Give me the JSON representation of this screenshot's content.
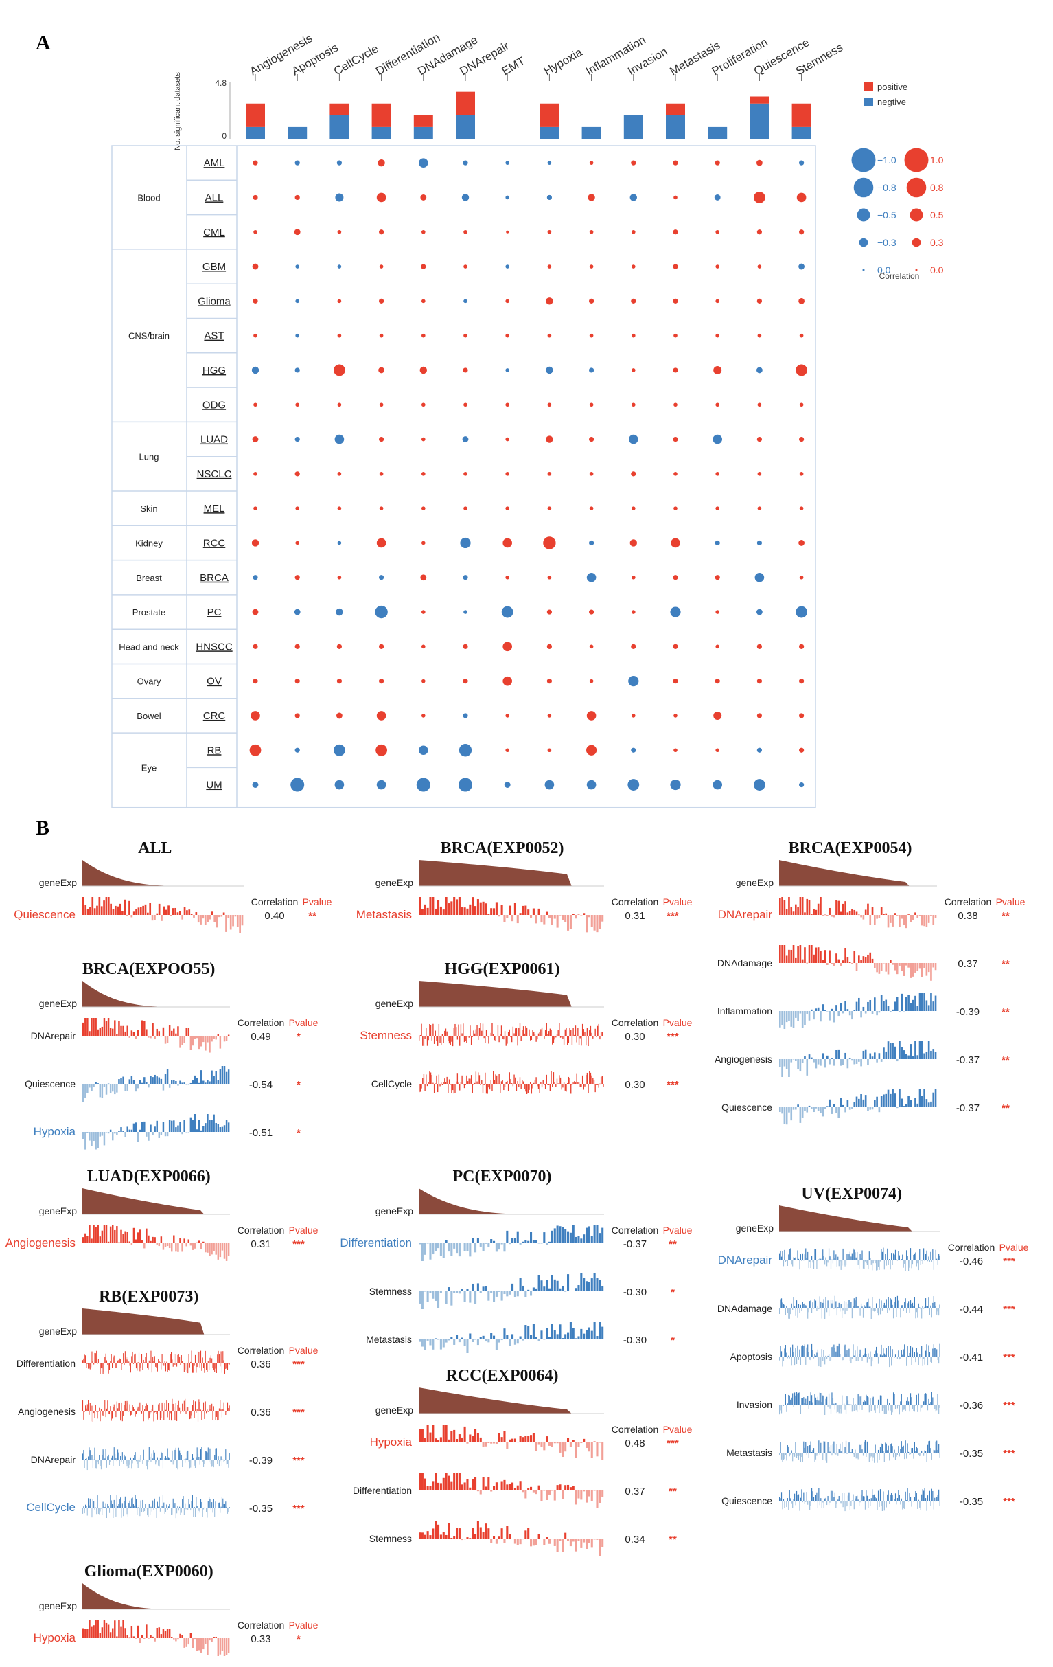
{
  "panel_a_label": "A",
  "panel_b_label": "B",
  "colors": {
    "pos": "#e8402f",
    "neg": "#3f7fbf",
    "pos_light": "#f2a097",
    "neg_light": "#9dbedc",
    "brown": "#8b4a3c"
  },
  "chart_data": [
    {
      "type": "bubble-matrix",
      "title": "A",
      "pathways": [
        "Angiogenesis",
        "Apoptosis",
        "CellCycle",
        "Differentiation",
        "DNAdamage",
        "DNArepair",
        "EMT",
        "Hypoxia",
        "Inflammation",
        "Invasion",
        "Metastasis",
        "Proliferation",
        "Quiescence",
        "Stemness"
      ],
      "bar_axis": {
        "label": "No. significant datasets",
        "max_label": "4.8",
        "min_label": "0",
        "ylim": [
          0,
          4.8
        ]
      },
      "bar_legend": {
        "positive": "positive",
        "negative": "negtive"
      },
      "bar_positive": [
        2,
        0,
        1,
        2,
        1,
        2,
        0,
        2,
        0,
        0,
        1,
        0,
        0.6,
        2
      ],
      "bar_negative": [
        1,
        1,
        2,
        1,
        1,
        2,
        0,
        1,
        1,
        2,
        2,
        1,
        3,
        1
      ],
      "size_legend": {
        "title": "Correlation",
        "neg_labels": [
          "−1.0",
          "−0.8",
          "−0.5",
          "−0.3",
          "0.0"
        ],
        "pos_labels": [
          "1.0",
          "0.8",
          "0.5",
          "0.3",
          "0.0"
        ],
        "values": [
          1.0,
          0.8,
          0.5,
          0.3,
          0.0
        ]
      },
      "groups": [
        {
          "name": "Blood",
          "cancers": [
            "AML",
            "ALL",
            "CML"
          ]
        },
        {
          "name": "CNS/brain",
          "cancers": [
            "GBM",
            "Glioma",
            "AST",
            "HGG",
            "ODG"
          ]
        },
        {
          "name": "Lung",
          "cancers": [
            "LUAD",
            "NSCLC"
          ]
        },
        {
          "name": "Skin",
          "cancers": [
            "MEL"
          ]
        },
        {
          "name": "Kidney",
          "cancers": [
            "RCC"
          ]
        },
        {
          "name": "Breast",
          "cancers": [
            "BRCA"
          ]
        },
        {
          "name": "Prostate",
          "cancers": [
            "PC"
          ]
        },
        {
          "name": "Head and neck",
          "cancers": [
            "HNSCC"
          ]
        },
        {
          "name": "Ovary",
          "cancers": [
            "OV"
          ]
        },
        {
          "name": "Bowel",
          "cancers": [
            "CRC"
          ]
        },
        {
          "name": "Eye",
          "cancers": [
            "RB",
            "UM"
          ]
        }
      ],
      "correlations": [
        [
          0.1,
          -0.1,
          -0.1,
          0.2,
          -0.3,
          -0.1,
          -0.05,
          -0.05,
          0.05,
          0.1,
          0.1,
          0.1,
          0.15,
          -0.1
        ],
        [
          0.1,
          0.1,
          -0.25,
          0.3,
          0.15,
          -0.2,
          -0.05,
          -0.1,
          0.2,
          -0.2,
          0.05,
          -0.15,
          0.4,
          0.3
        ],
        [
          0.05,
          0.15,
          0.05,
          0.1,
          0.05,
          0.05,
          0,
          0.05,
          0.05,
          0.05,
          0.1,
          0.05,
          0.1,
          0.1
        ],
        [
          0.15,
          -0.05,
          -0.05,
          0.05,
          0.1,
          0.05,
          -0.05,
          0.05,
          0.05,
          0.05,
          0.1,
          0.05,
          0.05,
          -0.15
        ],
        [
          0.1,
          -0.05,
          0.05,
          0.1,
          0.05,
          -0.05,
          0.05,
          0.2,
          0.1,
          0.1,
          0.1,
          0.05,
          0.1,
          0.15
        ],
        [
          0.05,
          -0.05,
          0.05,
          0.05,
          0.05,
          0.05,
          0.05,
          0.05,
          0.05,
          0.05,
          0.05,
          0.05,
          0.05,
          0.05
        ],
        [
          -0.2,
          -0.1,
          0.4,
          0.15,
          0.2,
          0.1,
          -0.05,
          -0.2,
          -0.1,
          0.05,
          0.1,
          0.25,
          -0.15,
          0.4
        ],
        [
          0.05,
          0.05,
          0.05,
          0.05,
          0.05,
          0.05,
          0.05,
          0.05,
          0.05,
          0.05,
          0.05,
          0.05,
          0.05,
          0.05
        ],
        [
          0.15,
          -0.1,
          -0.3,
          0.1,
          0.05,
          -0.15,
          0.05,
          0.2,
          0.1,
          -0.3,
          0.1,
          -0.3,
          0.1,
          0.1
        ],
        [
          0.05,
          0.1,
          0.05,
          0.05,
          0.05,
          0.05,
          0.05,
          0.05,
          0.05,
          0.1,
          0.05,
          0.05,
          0.05,
          0.05
        ],
        [
          0.05,
          0.05,
          0.05,
          0.05,
          0.05,
          0.05,
          0.05,
          0.05,
          0.05,
          0.05,
          0.05,
          0.05,
          0.05,
          0.05
        ],
        [
          0.2,
          0.05,
          -0.05,
          0.3,
          0.05,
          -0.35,
          0.3,
          0.45,
          -0.1,
          0.2,
          0.3,
          -0.1,
          -0.1,
          0.15
        ],
        [
          -0.1,
          0.1,
          0.05,
          -0.1,
          0.15,
          -0.1,
          0.05,
          0.05,
          -0.3,
          0.05,
          0.1,
          0.1,
          -0.3,
          0.05
        ],
        [
          0.15,
          -0.15,
          -0.2,
          -0.45,
          0.05,
          -0.05,
          -0.4,
          0.1,
          0.1,
          0.05,
          -0.35,
          0.05,
          -0.15,
          -0.4
        ],
        [
          0.1,
          0.1,
          0.1,
          0.1,
          0.05,
          0.1,
          0.3,
          0.1,
          0.05,
          0.1,
          0.1,
          0.05,
          0.1,
          0.1
        ],
        [
          0.1,
          0.1,
          0.1,
          0.1,
          0.05,
          0.1,
          0.3,
          0.1,
          0.05,
          -0.35,
          0.1,
          0.1,
          0.1,
          0.1
        ],
        [
          0.3,
          0.1,
          0.15,
          0.3,
          0.05,
          -0.1,
          0.05,
          0.05,
          0.3,
          0.05,
          0.05,
          0.25,
          0.1,
          0.1
        ],
        [
          0.4,
          -0.1,
          -0.4,
          0.4,
          -0.3,
          -0.45,
          0.05,
          0.05,
          0.35,
          -0.1,
          0.05,
          0.05,
          -0.1,
          0.1
        ],
        [
          -0.15,
          -0.5,
          -0.3,
          -0.3,
          -0.5,
          -0.5,
          -0.15,
          -0.3,
          -0.3,
          -0.4,
          -0.35,
          -0.3,
          -0.4,
          -0.1
        ]
      ]
    },
    {
      "type": "bar",
      "title": "B",
      "panels": [
        {
          "title": "ALL",
          "seed": 11,
          "exp_shape": "steep",
          "rows": [
            {
              "label": "Quiescence",
              "label_color": "pos",
              "corr": "0.40",
              "p": "**",
              "style": "mixed_pos",
              "header": true
            }
          ]
        },
        {
          "title": "BRCA(EXP0052)",
          "seed": 12,
          "exp_shape": "flat",
          "rows": [
            {
              "label": "Metastasis",
              "label_color": "pos",
              "corr": "0.31",
              "p": "***",
              "style": "mixed_pos",
              "header": true
            }
          ]
        },
        {
          "title": "BRCA(EXP0054)",
          "seed": 13,
          "exp_shape": "mid",
          "rows": [
            {
              "label": "DNArepair",
              "label_color": "pos",
              "corr": "0.38",
              "p": "**",
              "style": "mixed_pos",
              "header": true
            },
            {
              "label": "DNAdamage",
              "label_color": "plain",
              "corr": "0.37",
              "p": "**",
              "style": "mixed_pos"
            },
            {
              "label": "Inflammation",
              "label_color": "plain",
              "corr": "-0.39",
              "p": "**",
              "style": "mixed_neg"
            },
            {
              "label": "Angiogenesis",
              "label_color": "plain",
              "corr": "-0.37",
              "p": "**",
              "style": "mixed_neg"
            },
            {
              "label": "Quiescence",
              "label_color": "plain",
              "corr": "-0.37",
              "p": "**",
              "style": "mixed_neg"
            }
          ]
        },
        {
          "title": "BRCA(EXPOO55)",
          "seed": 14,
          "exp_shape": "steep",
          "rows": [
            {
              "label": "DNArepair",
              "label_color": "plain",
              "corr": "0.49",
              "p": "*",
              "style": "mixed_pos",
              "header": true
            },
            {
              "label": "Quiescence",
              "label_color": "plain",
              "corr": "-0.54",
              "p": "*",
              "style": "mixed_neg"
            },
            {
              "label": "Hypoxia",
              "label_color": "neg",
              "corr": "-0.51",
              "p": "*",
              "style": "mixed_neg"
            }
          ]
        },
        {
          "title": "HGG(EXP0061)",
          "seed": 15,
          "exp_shape": "flat",
          "rows": [
            {
              "label": "Stemness",
              "label_color": "pos",
              "corr": "0.30",
              "p": "***",
              "style": "dense_pos",
              "header": true
            },
            {
              "label": "CellCycle",
              "label_color": "plain",
              "corr": "0.30",
              "p": "***",
              "style": "dense_pos"
            }
          ]
        },
        {
          "title": "LUAD(EXP0066)",
          "seed": 16,
          "exp_shape": "mid",
          "rows": [
            {
              "label": "Angiogenesis",
              "label_color": "pos",
              "corr": "0.31",
              "p": "***",
              "style": "mixed_pos",
              "header": true
            }
          ]
        },
        {
          "title": "PC(EXP0070)",
          "seed": 17,
          "exp_shape": "steep",
          "rows": [
            {
              "label": "Differentiation",
              "label_color": "neg",
              "corr": "-0.37",
              "p": "**",
              "style": "mixed_neg",
              "header": true
            },
            {
              "label": "Stemness",
              "label_color": "plain",
              "corr": "-0.30",
              "p": "*",
              "style": "mixed_neg"
            },
            {
              "label": "Metastasis",
              "label_color": "plain",
              "corr": "-0.30",
              "p": "*",
              "style": "mixed_neg"
            }
          ]
        },
        {
          "title": "UV(EXP0074)",
          "seed": 18,
          "exp_shape": "mid",
          "rows": [
            {
              "label": "DNArepair",
              "label_color": "neg",
              "corr": "-0.46",
              "p": "***",
              "style": "dense_neg",
              "header": true
            },
            {
              "label": "DNAdamage",
              "label_color": "plain",
              "corr": "-0.44",
              "p": "***",
              "style": "dense_neg"
            },
            {
              "label": "Apoptosis",
              "label_color": "plain",
              "corr": "-0.41",
              "p": "***",
              "style": "dense_neg"
            },
            {
              "label": "Invasion",
              "label_color": "plain",
              "corr": "-0.36",
              "p": "***",
              "style": "dense_neg"
            },
            {
              "label": "Metastasis",
              "label_color": "plain",
              "corr": "-0.35",
              "p": "***",
              "style": "dense_neg"
            },
            {
              "label": "Quiescence",
              "label_color": "plain",
              "corr": "-0.35",
              "p": "***",
              "style": "dense_neg"
            }
          ]
        },
        {
          "title": "RB(EXP0073)",
          "seed": 19,
          "exp_shape": "flat",
          "rows": [
            {
              "label": "Differentiation",
              "label_color": "plain",
              "corr": "0.36",
              "p": "***",
              "style": "dense_pos",
              "header": true
            },
            {
              "label": "Angiogenesis",
              "label_color": "plain",
              "corr": "0.36",
              "p": "***",
              "style": "dense_pos"
            },
            {
              "label": "DNArepair",
              "label_color": "plain",
              "corr": "-0.39",
              "p": "***",
              "style": "dense_neg"
            },
            {
              "label": "CellCycle",
              "label_color": "neg",
              "corr": "-0.35",
              "p": "***",
              "style": "dense_neg"
            }
          ]
        },
        {
          "title": "RCC(EXP0064)",
          "seed": 20,
          "exp_shape": "mid",
          "rows": [
            {
              "label": "Hypoxia",
              "label_color": "pos",
              "corr": "0.48",
              "p": "***",
              "style": "mixed_pos",
              "header": true
            },
            {
              "label": "Differentiation",
              "label_color": "plain",
              "corr": "0.37",
              "p": "**",
              "style": "mixed_pos"
            },
            {
              "label": "Stemness",
              "label_color": "plain",
              "corr": "0.34",
              "p": "**",
              "style": "mixed_pos"
            }
          ]
        },
        {
          "title": "Glioma(EXP0060)",
          "seed": 21,
          "exp_shape": "steep",
          "rows": [
            {
              "label": "Hypoxia",
              "label_color": "pos",
              "corr": "0.33",
              "p": "*",
              "style": "mixed_pos",
              "header": true
            }
          ]
        }
      ],
      "gene_exp_label": "geneExp",
      "corr_header": "Correlation",
      "p_header": "Pvalue"
    }
  ]
}
